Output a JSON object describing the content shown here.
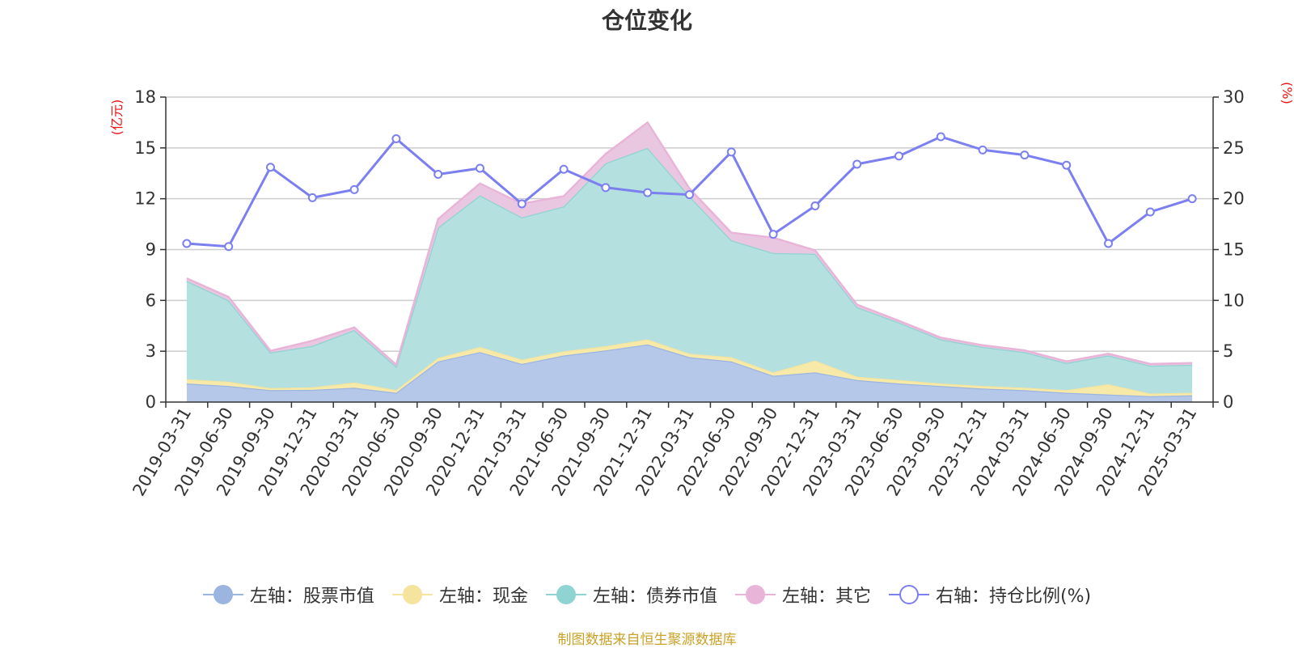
{
  "chart_data": {
    "type": "area",
    "title": "仓位变化",
    "left_axis_unit": "(亿元)",
    "right_axis_unit": "(%)",
    "x": [
      "2019-03-31",
      "2019-06-30",
      "2019-09-30",
      "2019-12-31",
      "2020-03-31",
      "2020-06-30",
      "2020-09-30",
      "2020-12-31",
      "2021-03-31",
      "2021-06-30",
      "2021-09-30",
      "2021-12-31",
      "2022-03-31",
      "2022-06-30",
      "2022-09-30",
      "2022-12-31",
      "2023-03-31",
      "2023-06-30",
      "2023-09-30",
      "2023-12-31",
      "2024-03-31",
      "2024-06-30",
      "2024-09-30",
      "2024-12-31",
      "2025-03-31"
    ],
    "y_left_ticks": [
      "0",
      "3",
      "6",
      "9",
      "12",
      "15",
      "18"
    ],
    "y_left_lim": [
      0,
      18
    ],
    "y_right_ticks": [
      "0",
      "5",
      "10",
      "15",
      "20",
      "25",
      "30"
    ],
    "y_right_lim": [
      0,
      30
    ],
    "grid": true,
    "legend_position": "bottom",
    "series": [
      {
        "name": "左轴：股票市值",
        "axis": "left",
        "stacked": true,
        "color": "#9bb5e0",
        "fill": "#b6c8ea",
        "values": [
          1.1,
          0.95,
          0.7,
          0.72,
          0.85,
          0.55,
          2.4,
          2.95,
          2.25,
          2.75,
          3.05,
          3.4,
          2.65,
          2.4,
          1.55,
          1.75,
          1.3,
          1.1,
          0.95,
          0.8,
          0.7,
          0.55,
          0.45,
          0.35,
          0.4
        ]
      },
      {
        "name": "左轴：现金",
        "axis": "left",
        "stacked": true,
        "color": "#f5e49d",
        "fill": "#f7eaa9",
        "values": [
          0.25,
          0.25,
          0.12,
          0.15,
          0.3,
          0.15,
          0.2,
          0.3,
          0.25,
          0.25,
          0.25,
          0.3,
          0.2,
          0.25,
          0.2,
          0.7,
          0.2,
          0.2,
          0.15,
          0.15,
          0.15,
          0.15,
          0.6,
          0.15,
          0.15
        ]
      },
      {
        "name": "左轴：债券市值",
        "axis": "left",
        "stacked": true,
        "color": "#8fd3d2",
        "fill": "#b4e0df",
        "values": [
          5.8,
          4.8,
          2.1,
          2.45,
          3.1,
          1.4,
          7.7,
          8.95,
          8.4,
          8.55,
          10.8,
          11.3,
          9.3,
          6.9,
          7.05,
          6.3,
          4.1,
          3.4,
          2.6,
          2.3,
          2.1,
          1.6,
          1.7,
          1.65,
          1.65
        ]
      },
      {
        "name": "左轴：其它",
        "axis": "left",
        "stacked": true,
        "color": "#e8b4d8",
        "fill": "#eac7e1",
        "values": [
          0.15,
          0.2,
          0.1,
          0.3,
          0.15,
          0.1,
          0.5,
          0.7,
          0.8,
          0.6,
          0.55,
          1.5,
          0.45,
          0.45,
          0.9,
          0.2,
          0.15,
          0.1,
          0.1,
          0.1,
          0.1,
          0.1,
          0.1,
          0.1,
          0.1
        ]
      },
      {
        "name": "右轴：持仓比例(%)",
        "axis": "right",
        "stacked": false,
        "color": "#7b7ff0",
        "values": [
          15.6,
          15.3,
          23.1,
          20.1,
          20.9,
          25.9,
          22.4,
          23.0,
          19.5,
          22.9,
          21.1,
          20.6,
          20.4,
          24.6,
          16.5,
          19.3,
          23.4,
          24.2,
          26.1,
          24.8,
          24.3,
          23.3,
          15.6,
          18.7,
          20.0
        ]
      }
    ]
  },
  "legend": [
    {
      "label": "左轴：股票市值",
      "line_color": "#9bb5e0",
      "dot_fill": "#9bb5e0",
      "dot_border": "#9bb5e0"
    },
    {
      "label": "左轴：现金",
      "line_color": "#f5e49d",
      "dot_fill": "#f5e49d",
      "dot_border": "#f5e49d"
    },
    {
      "label": "左轴：债券市值",
      "line_color": "#8fd3d2",
      "dot_fill": "#8fd3d2",
      "dot_border": "#8fd3d2"
    },
    {
      "label": "左轴：其它",
      "line_color": "#e8b4d8",
      "dot_fill": "#e8b4d8",
      "dot_border": "#e8b4d8"
    },
    {
      "label": "右轴：持仓比例(%)",
      "line_color": "#7b7ff0",
      "dot_fill": "#ffffff",
      "dot_border": "#7b7ff0"
    }
  ],
  "source_note": "制图数据来自恒生聚源数据库",
  "colors": {
    "axis_unit": "#ee1111",
    "grid": "#cccccc",
    "axis": "#333333",
    "text": "#333333",
    "note": "#c9a227"
  }
}
